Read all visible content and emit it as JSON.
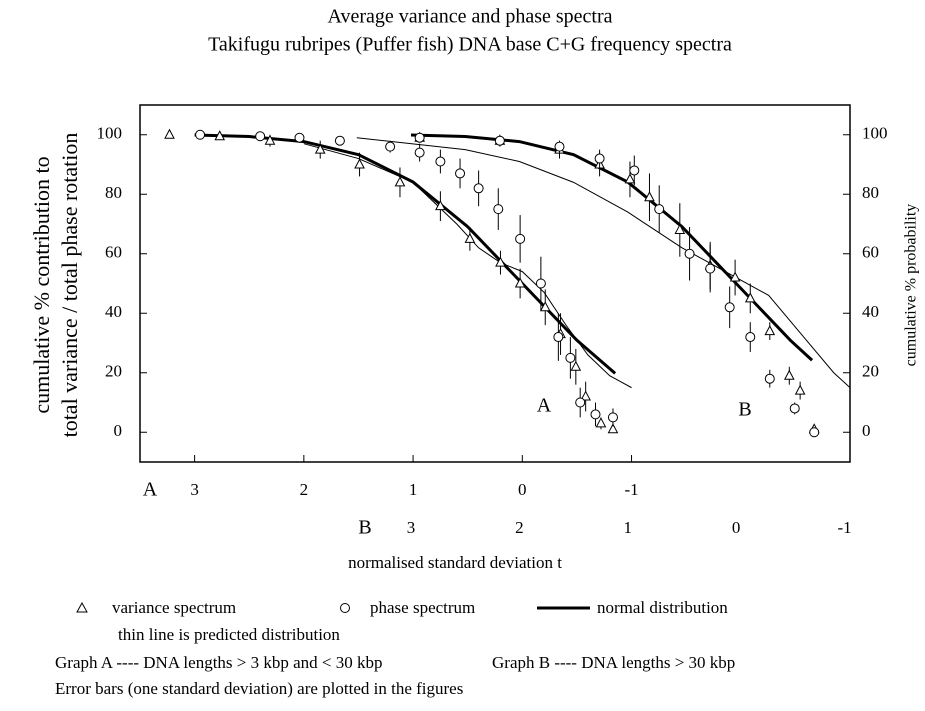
{
  "chart_data": {
    "type": "scatter",
    "title": "Average variance and phase spectra",
    "subtitle": "Takifugu rubripes (Puffer fish) DNA base C+G frequency spectra",
    "ylabel": [
      "cumulative  %  contribution  to",
      "total  variance / total   phase  rotation"
    ],
    "y2label": "cumulative % probability",
    "xlabel": "normalised standard deviation  t",
    "ylim": [
      -10,
      110
    ],
    "yticks": [
      0,
      20,
      40,
      60,
      80,
      100
    ],
    "y2lim": [
      -10,
      110
    ],
    "y2ticks": [
      0,
      20,
      40,
      60,
      80,
      100
    ],
    "x_axes": [
      {
        "label": "A",
        "xlim": [
          3.5,
          -3.0
        ],
        "xticks": [
          3,
          2,
          1,
          0,
          -1
        ]
      },
      {
        "label": "B",
        "xlim": [
          5.5,
          -1.05
        ],
        "xticks": [
          3,
          2,
          1,
          0,
          -1
        ]
      }
    ],
    "graphs": [
      {
        "label": "A",
        "variance": {
          "x": [
            3.23,
            2.77,
            2.31,
            1.85,
            1.49,
            1.12,
            0.75,
            0.48,
            0.2,
            0.02,
            -0.21,
            -0.35,
            -0.49,
            -0.58,
            -0.72,
            -0.83
          ],
          "values": [
            100,
            99.5,
            98,
            95,
            90,
            84,
            76,
            65,
            57,
            50,
            42,
            33,
            22,
            12,
            3,
            1
          ],
          "errors": [
            0.5,
            1,
            2,
            3,
            4,
            5,
            5,
            4,
            4,
            5,
            6,
            7,
            6,
            5,
            2,
            1
          ]
        },
        "phase": {
          "x": [
            2.95,
            2.4,
            2.04,
            1.67,
            1.21,
            0.94,
            0.75,
            0.57,
            0.4,
            0.22,
            0.02,
            -0.17,
            -0.33,
            -0.44,
            -0.53,
            -0.67,
            -0.83
          ],
          "values": [
            100,
            99.5,
            99,
            98,
            96,
            94,
            91,
            87,
            82,
            75,
            65,
            50,
            32,
            25,
            10,
            6,
            5
          ],
          "errors": [
            0.5,
            0.5,
            1,
            1,
            2,
            3,
            4,
            5,
            6,
            7,
            8,
            9,
            8,
            7,
            5,
            4,
            3
          ]
        },
        "normal": {
          "x": [
            3,
            2.5,
            2,
            1.5,
            1,
            0.5,
            0,
            -0.5,
            -0.85
          ],
          "values": [
            99.9,
            99.4,
            97.7,
            93.3,
            84.1,
            69.1,
            50,
            30.9,
            19.8
          ]
        },
        "predicted": {
          "x": [
            2.0,
            1.5,
            1.0,
            0.6,
            0.4,
            0.2,
            0.0,
            -0.2,
            -0.4,
            -0.6,
            -0.8,
            -1.0
          ],
          "values": [
            97,
            92,
            84,
            70,
            62,
            57,
            54,
            47,
            36,
            26,
            19,
            15
          ]
        }
      },
      {
        "label": "B",
        "variance": {
          "x": [
            2.92,
            2.18,
            1.63,
            1.26,
            0.98,
            0.8,
            0.52,
            0.24,
            0.01,
            -0.13,
            -0.31,
            -0.49,
            -0.59,
            -0.72
          ],
          "values": [
            99,
            98,
            95,
            90,
            85,
            79,
            68,
            56,
            52,
            45,
            34,
            19,
            14,
            1
          ],
          "errors": [
            1,
            2,
            3,
            4,
            6,
            8,
            9,
            8,
            6,
            5,
            3,
            3,
            3,
            1
          ]
        },
        "phase": {
          "x": [
            2.92,
            2.18,
            1.63,
            1.26,
            0.94,
            0.71,
            0.43,
            0.24,
            0.06,
            -0.13,
            -0.31,
            -0.54,
            -0.72
          ],
          "values": [
            99,
            98,
            96,
            92,
            88,
            75,
            60,
            55,
            42,
            32,
            18,
            8,
            0
          ],
          "errors": [
            1,
            1,
            2,
            3,
            5,
            8,
            9,
            8,
            7,
            5,
            3,
            2,
            1
          ]
        },
        "normal": {
          "x": [
            3,
            2.5,
            2,
            1.5,
            1,
            0.5,
            0,
            -0.5,
            -0.7
          ],
          "values": [
            99.9,
            99.4,
            97.7,
            93.3,
            84.1,
            69.1,
            50,
            30.9,
            24.2
          ]
        },
        "predicted": {
          "x": [
            3.5,
            2.5,
            2.0,
            1.5,
            1.0,
            0.5,
            0.0,
            -0.3,
            -0.6,
            -0.9,
            -1.05
          ],
          "values": [
            99,
            95,
            91,
            84,
            74,
            62,
            52,
            46,
            33,
            20,
            15
          ]
        }
      }
    ],
    "legend": [
      "variance spectrum",
      "phase spectrum",
      "normal distribution"
    ],
    "notes": [
      "thin line  is  predicted distribution",
      "Graph A ---- DNA lengths > 3 kbp and < 30 kbp",
      "Graph B ---- DNA lengths > 30 kbp",
      "Error bars (one standard deviation) are plotted in the figures"
    ]
  }
}
